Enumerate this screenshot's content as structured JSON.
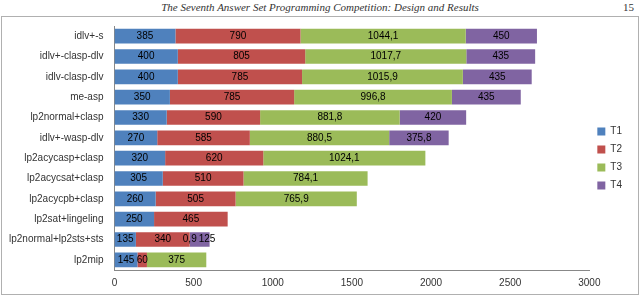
{
  "header": {
    "title": "The Seventh Answer Set Programming Competition: Design and Results",
    "page": "15"
  },
  "chart_data": {
    "type": "bar",
    "orientation": "horizontal",
    "stacked": true,
    "data_labels": true,
    "grid": false,
    "legend": "right",
    "categories": [
      "idlv+-s",
      "idlv+-clasp-dlv",
      "idlv-clasp-dlv",
      "me-asp",
      "lp2normal+clasp",
      "idlv+-wasp-dlv",
      "lp2acycasp+clasp",
      "lp2acycsat+clasp",
      "lp2acycpb+clasp",
      "lp2sat+lingeling",
      "lp2normal+lp2sts+sts",
      "lp2mip"
    ],
    "series": [
      {
        "name": "T1",
        "color": "#4f81bd",
        "values": [
          385,
          400,
          400,
          350,
          330,
          270,
          320,
          305,
          260,
          250,
          135,
          145
        ]
      },
      {
        "name": "T2",
        "color": "#c0504d",
        "values": [
          790,
          805,
          785,
          785,
          590,
          585,
          620,
          510,
          505,
          465,
          340,
          60
        ]
      },
      {
        "name": "T3",
        "color": "#9bbb59",
        "values": [
          1044.1,
          1017.7,
          1015.9,
          996.8,
          881.8,
          880.5,
          1024.1,
          784.1,
          765.9,
          null,
          0.9,
          375
        ],
        "value_labels": [
          "1044,1",
          "1017,7",
          "1015,9",
          "996,8",
          "881,8",
          "880,5",
          "1024,1",
          "784,1",
          "765,9",
          null,
          "0,9",
          "375"
        ]
      },
      {
        "name": "T4",
        "color": "#8064a2",
        "values": [
          450,
          435,
          435,
          435,
          420,
          375.8,
          null,
          null,
          null,
          null,
          125,
          null
        ],
        "value_labels": [
          "450",
          "435",
          "435",
          "435",
          "420",
          "375,8",
          null,
          null,
          null,
          null,
          "125",
          null
        ]
      }
    ],
    "xlim": [
      0,
      3000
    ],
    "xticks": [
      0,
      500,
      1000,
      1500,
      2000,
      2500,
      3000
    ]
  }
}
